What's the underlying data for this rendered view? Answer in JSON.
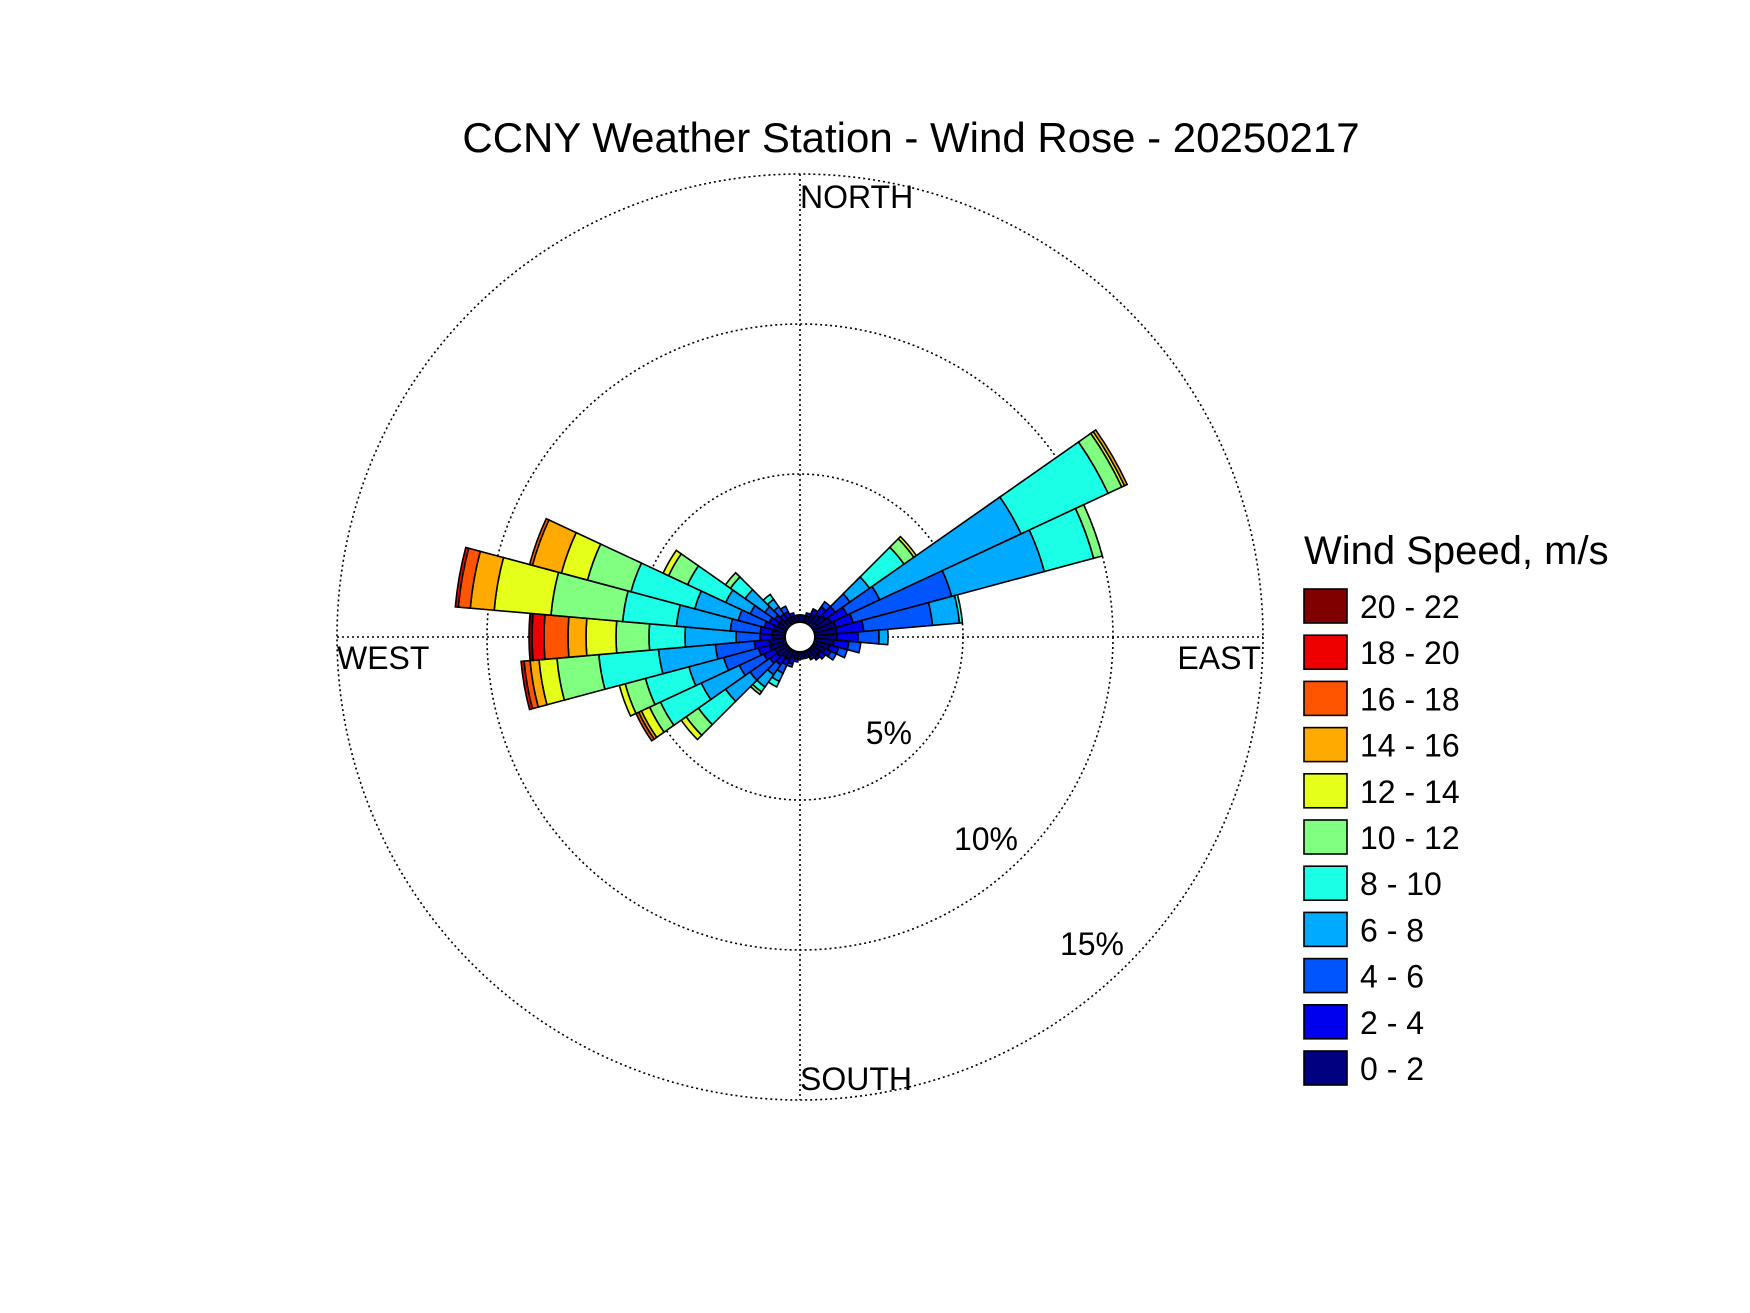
{
  "chart_data": {
    "type": "wind-rose",
    "title": "CCNY Weather Station - Wind Rose - 20250217",
    "compass_labels": {
      "north": "NORTH",
      "east": "EAST",
      "south": "SOUTH",
      "west": "WEST"
    },
    "radial_ticks": [
      {
        "value": 5,
        "label": "5%"
      },
      {
        "value": 10,
        "label": "10%"
      },
      {
        "value": 15,
        "label": "15%"
      }
    ],
    "radial_max": 15,
    "grid": true,
    "legend": {
      "title": "Wind Speed, m/s",
      "placement": "right",
      "bins": [
        {
          "label": "20 - 22",
          "color": "#800000"
        },
        {
          "label": "18 - 20",
          "color": "#ee0000"
        },
        {
          "label": "16 - 18",
          "color": "#ff5500"
        },
        {
          "label": "14 - 16",
          "color": "#ffaa00"
        },
        {
          "label": "12 - 14",
          "color": "#e5ff1a"
        },
        {
          "label": "10 - 12",
          "color": "#80ff80"
        },
        {
          "label": "8 - 10",
          "color": "#1affe5"
        },
        {
          "label": "6 - 8",
          "color": "#00aaff"
        },
        {
          "label": "4 - 6",
          "color": "#0055ff"
        },
        {
          "label": "2 - 4",
          "color": "#0000ee"
        },
        {
          "label": "0 - 2",
          "color": "#000080"
        }
      ]
    },
    "direction_step_deg": 10,
    "cumulative_note": "values are cumulative percent at the outer edge of each speed bin, ordered 0-2 upward",
    "sectors": [
      {
        "direction_deg": 0,
        "cumulative_percent": [
          0.3
        ]
      },
      {
        "direction_deg": 10,
        "cumulative_percent": [
          0.3
        ]
      },
      {
        "direction_deg": 20,
        "cumulative_percent": [
          0.3,
          0.4
        ]
      },
      {
        "direction_deg": 30,
        "cumulative_percent": [
          0.4,
          0.6
        ]
      },
      {
        "direction_deg": 40,
        "cumulative_percent": [
          0.5,
          0.8,
          1.0
        ]
      },
      {
        "direction_deg": 50,
        "cumulative_percent": [
          0.6,
          1.0,
          1.6,
          2.4,
          3.8,
          4.2,
          4.3
        ]
      },
      {
        "direction_deg": 60,
        "cumulative_percent": [
          0.7,
          1.3,
          2.5,
          7.7,
          10.9,
          11.4,
          11.5,
          11.6
        ]
      },
      {
        "direction_deg": 70,
        "cumulative_percent": [
          0.8,
          1.4,
          4.8,
          8.0,
          9.7,
          10.0
        ]
      },
      {
        "direction_deg": 80,
        "cumulative_percent": [
          0.8,
          1.7,
          4.0,
          4.9,
          5.0
        ]
      },
      {
        "direction_deg": 90,
        "cumulative_percent": [
          0.8,
          1.5,
          2.2,
          2.5
        ]
      },
      {
        "direction_deg": 100,
        "cumulative_percent": [
          0.7,
          1.2,
          1.6
        ]
      },
      {
        "direction_deg": 110,
        "cumulative_percent": [
          0.6,
          0.9,
          1.2
        ]
      },
      {
        "direction_deg": 120,
        "cumulative_percent": [
          0.5,
          0.7,
          0.9
        ]
      },
      {
        "direction_deg": 130,
        "cumulative_percent": [
          0.4,
          0.6
        ]
      },
      {
        "direction_deg": 140,
        "cumulative_percent": [
          0.4,
          0.5
        ]
      },
      {
        "direction_deg": 150,
        "cumulative_percent": [
          0.3,
          0.4
        ]
      },
      {
        "direction_deg": 160,
        "cumulative_percent": [
          0.3
        ]
      },
      {
        "direction_deg": 170,
        "cumulative_percent": [
          0.3
        ]
      },
      {
        "direction_deg": 180,
        "cumulative_percent": [
          0.3
        ]
      },
      {
        "direction_deg": 190,
        "cumulative_percent": [
          0.3,
          0.4
        ]
      },
      {
        "direction_deg": 200,
        "cumulative_percent": [
          0.3,
          0.5,
          0.6
        ]
      },
      {
        "direction_deg": 210,
        "cumulative_percent": [
          0.4,
          0.6,
          0.9,
          1.2,
          1.4
        ]
      },
      {
        "direction_deg": 220,
        "cumulative_percent": [
          0.4,
          0.7,
          1.1,
          1.6,
          1.8,
          1.9
        ]
      },
      {
        "direction_deg": 230,
        "cumulative_percent": [
          0.5,
          0.8,
          1.6,
          2.6,
          3.7,
          4.2,
          4.4
        ]
      },
      {
        "direction_deg": 240,
        "cumulative_percent": [
          0.5,
          0.9,
          1.8,
          3.2,
          4.7,
          5.1,
          5.4,
          5.5,
          5.6
        ]
      },
      {
        "direction_deg": 250,
        "cumulative_percent": [
          0.6,
          1.0,
          2.2,
          3.4,
          4.9,
          5.6,
          5.8
        ]
      },
      {
        "direction_deg": 260,
        "cumulative_percent": [
          0.6,
          1.1,
          2.4,
          4.3,
          6.3,
          7.7,
          8.3,
          8.6,
          8.8,
          8.9
        ]
      },
      {
        "direction_deg": 270,
        "cumulative_percent": [
          0.5,
          0.9,
          1.7,
          3.4,
          4.6,
          5.7,
          6.7,
          7.3,
          8.1,
          8.5,
          8.6
        ]
      },
      {
        "direction_deg": 280,
        "cumulative_percent": [
          0.5,
          0.9,
          1.9,
          3.7,
          5.5,
          7.9,
          9.8,
          10.6,
          11.0,
          11.1
        ]
      },
      {
        "direction_deg": 290,
        "cumulative_percent": [
          0.5,
          0.8,
          1.7,
          3.2,
          5.4,
          6.9,
          7.8,
          8.8,
          8.9
        ]
      },
      {
        "direction_deg": 300,
        "cumulative_percent": [
          0.4,
          0.7,
          1.4,
          2.3,
          3.7,
          4.4,
          4.6
        ]
      },
      {
        "direction_deg": 310,
        "cumulative_percent": [
          0.4,
          0.6,
          1.0,
          1.8,
          2.4,
          2.6
        ]
      },
      {
        "direction_deg": 320,
        "cumulative_percent": [
          0.3,
          0.5,
          0.8,
          1.1,
          1.3
        ]
      },
      {
        "direction_deg": 330,
        "cumulative_percent": [
          0.3,
          0.5,
          0.7
        ]
      },
      {
        "direction_deg": 340,
        "cumulative_percent": [
          0.3,
          0.4
        ]
      },
      {
        "direction_deg": 350,
        "cumulative_percent": [
          0.3
        ]
      }
    ]
  }
}
